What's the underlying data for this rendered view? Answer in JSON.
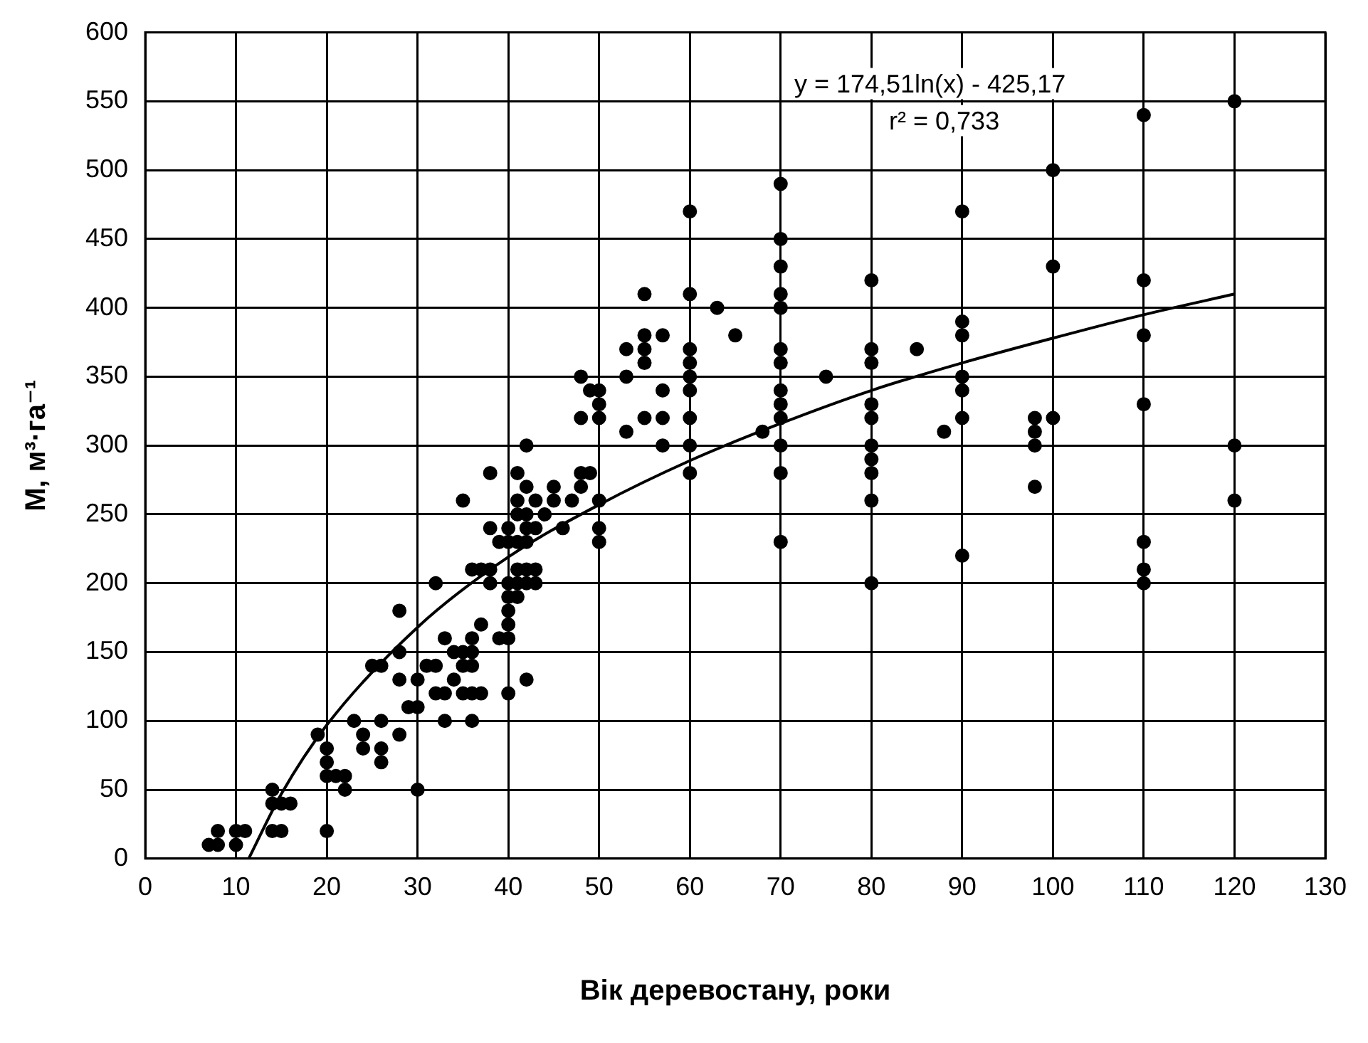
{
  "chart_data": {
    "type": "scatter",
    "xlabel": "Вік деревостану, роки",
    "ylabel": "M, м³·га⁻¹",
    "annotations": [
      "y = 174,51ln(x) - 425,17",
      "r² = 0,733"
    ],
    "xlim": [
      0,
      130
    ],
    "xticks": [
      0,
      10,
      20,
      30,
      40,
      50,
      60,
      70,
      80,
      90,
      100,
      110,
      120,
      130
    ],
    "ylim": [
      0,
      600
    ],
    "yticks": [
      0,
      50,
      100,
      150,
      200,
      250,
      300,
      350,
      400,
      450,
      500,
      550,
      600
    ],
    "grid": true,
    "legend": false,
    "series": [
      {
        "marker": "circle",
        "color": "#000000",
        "x": [
          7,
          8,
          8,
          10,
          10,
          11,
          14,
          14,
          14,
          15,
          16,
          15,
          19,
          20,
          20,
          20,
          20,
          21,
          22,
          22,
          23,
          24,
          24,
          25,
          26,
          26,
          26,
          26,
          28,
          28,
          28,
          28,
          29,
          30,
          30,
          30,
          31,
          32,
          32,
          32,
          33,
          33,
          33,
          34,
          34,
          35,
          35,
          35,
          35,
          36,
          36,
          36,
          36,
          36,
          36,
          37,
          37,
          37,
          38,
          38,
          38,
          38,
          39,
          39,
          40,
          40,
          40,
          40,
          40,
          40,
          40,
          40,
          41,
          41,
          41,
          41,
          41,
          41,
          41,
          42,
          42,
          42,
          42,
          42,
          42,
          42,
          42,
          43,
          43,
          43,
          43,
          44,
          45,
          45,
          46,
          47,
          48,
          48,
          48,
          48,
          49,
          49,
          50,
          50,
          50,
          50,
          50,
          50,
          53,
          53,
          53,
          55,
          55,
          55,
          55,
          55,
          57,
          57,
          57,
          57,
          60,
          60,
          60,
          60,
          60,
          60,
          60,
          60,
          60,
          63,
          65,
          68,
          70,
          70,
          70,
          70,
          70,
          70,
          70,
          70,
          70,
          70,
          70,
          70,
          70,
          75,
          80,
          80,
          80,
          80,
          80,
          80,
          80,
          80,
          80,
          80,
          85,
          88,
          90,
          90,
          90,
          90,
          90,
          90,
          90,
          98,
          98,
          98,
          98,
          100,
          100,
          100,
          110,
          110,
          110,
          110,
          110,
          110,
          110,
          120,
          120,
          120
        ],
        "values": [
          10,
          10,
          20,
          10,
          20,
          20,
          40,
          50,
          20,
          40,
          40,
          20,
          90,
          80,
          70,
          60,
          20,
          60,
          60,
          50,
          100,
          90,
          80,
          140,
          140,
          100,
          80,
          70,
          180,
          150,
          130,
          90,
          110,
          110,
          130,
          50,
          140,
          140,
          120,
          200,
          120,
          100,
          160,
          150,
          130,
          140,
          150,
          120,
          260,
          210,
          160,
          150,
          140,
          120,
          100,
          210,
          170,
          120,
          280,
          240,
          200,
          210,
          230,
          160,
          230,
          240,
          200,
          190,
          180,
          170,
          160,
          120,
          280,
          260,
          250,
          230,
          210,
          200,
          190,
          300,
          270,
          250,
          240,
          230,
          210,
          200,
          130,
          260,
          210,
          200,
          240,
          250,
          270,
          260,
          240,
          260,
          350,
          320,
          280,
          270,
          280,
          340,
          340,
          330,
          320,
          260,
          240,
          230,
          370,
          350,
          310,
          410,
          380,
          370,
          360,
          320,
          380,
          340,
          320,
          300,
          470,
          410,
          370,
          360,
          350,
          340,
          320,
          300,
          280,
          400,
          380,
          310,
          490,
          450,
          430,
          410,
          400,
          370,
          360,
          340,
          330,
          320,
          300,
          280,
          230,
          350,
          420,
          370,
          360,
          330,
          320,
          300,
          290,
          280,
          260,
          200,
          370,
          310,
          470,
          390,
          380,
          350,
          340,
          320,
          220,
          320,
          310,
          300,
          270,
          500,
          430,
          320,
          540,
          420,
          380,
          330,
          230,
          210,
          200,
          550,
          300,
          260
        ]
      },
      {
        "type": "line",
        "color": "#000000",
        "x": [
          11.4,
          15,
          20,
          30,
          40,
          50,
          60,
          70,
          80,
          90,
          100,
          110,
          120
        ],
        "values": [
          0,
          47,
          97,
          168,
          219,
          257,
          289,
          316,
          340,
          360,
          378,
          395,
          410
        ]
      }
    ]
  }
}
